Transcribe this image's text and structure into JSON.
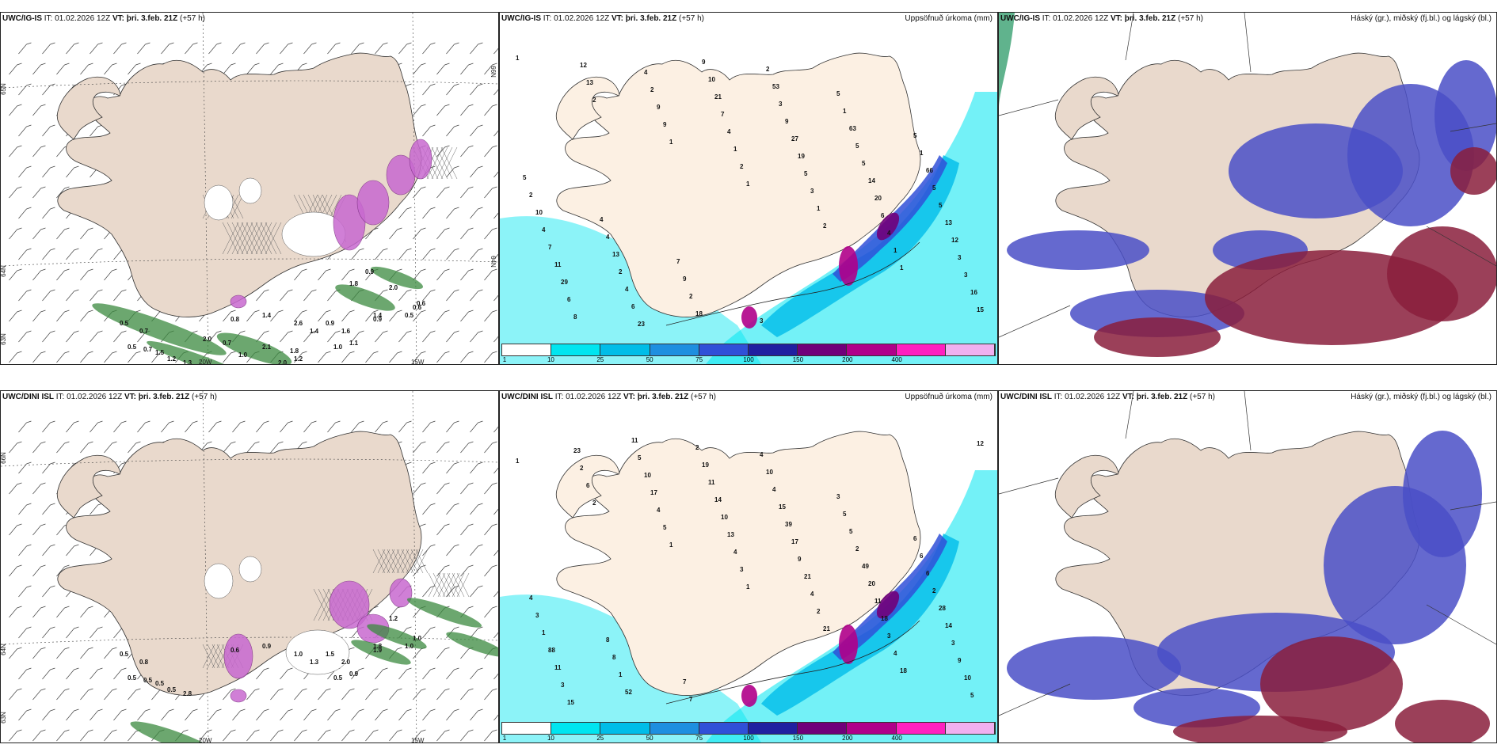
{
  "panels": [
    {
      "model": "UWC/IG-IS",
      "it_label": "IT:",
      "it": "01.02.2026 12Z",
      "vt_label": "VT:",
      "vt": "þri. 3.feb. 21Z",
      "lead": "(+57 h)",
      "title_right": "",
      "kind": "wind",
      "lon_labels": [
        "20W",
        "15W"
      ],
      "lat_labels": [
        "66N",
        "64N"
      ],
      "lat_left": [
        "65N",
        "64N",
        "63N"
      ]
    },
    {
      "model": "UWC/IG-IS",
      "it_label": "IT:",
      "it": "01.02.2026 12Z",
      "vt_label": "VT:",
      "vt": "þri. 3.feb. 21Z",
      "lead": "(+57 h)",
      "title_right": "Uppsöfnuð úrkoma (mm)",
      "kind": "precip"
    },
    {
      "model": "UWC/IG-IS",
      "it_label": "IT:",
      "it": "01.02.2026 12Z",
      "vt_label": "VT:",
      "vt": "þri. 3.feb. 21Z",
      "lead": "(+57 h)",
      "title_right": "Háský (gr.), miðský (fj.bl.) og lágský (bl.)",
      "kind": "cloud"
    },
    {
      "model": "UWC/DINI ISL",
      "it_label": "IT:",
      "it": "01.02.2026 12Z",
      "vt_label": "VT:",
      "vt": "þri. 3.feb. 21Z",
      "lead": "(+57 h)",
      "title_right": "",
      "kind": "wind",
      "lon_labels": [
        "20W",
        "15W"
      ],
      "lat_labels": [
        "66N",
        "64N"
      ],
      "lat_left": [
        "66N",
        "64N",
        "63N"
      ]
    },
    {
      "model": "UWC/DINI ISL",
      "it_label": "IT:",
      "it": "01.02.2026 12Z",
      "vt_label": "VT:",
      "vt": "þri. 3.feb. 21Z",
      "lead": "(+57 h)",
      "title_right": "Uppsöfnuð úrkoma (mm)",
      "kind": "precip"
    },
    {
      "model": "UWC/DINI ISL",
      "it_label": "IT:",
      "it": "01.02.2026 12Z",
      "vt_label": "VT:",
      "vt": "þri. 3.feb. 21Z",
      "lead": "(+57 h)",
      "title_right": "Háský (gr.), miðský (fj.bl.) og lágský (bl.)",
      "kind": "cloud"
    }
  ],
  "colorbar": {
    "ticks": [
      "1",
      "10",
      "25",
      "50",
      "75",
      "100",
      "150",
      "200",
      "400"
    ],
    "colors": [
      "#ffffff",
      "#00e5f0",
      "#00bde8",
      "#1e8fe0",
      "#3050d8",
      "#2020a0",
      "#70007a",
      "#b0008a",
      "#ff20c0",
      "#f0b0f0"
    ]
  },
  "precip_numbers_top": [
    "1",
    "2",
    "1",
    "1",
    "2",
    "1",
    "15",
    "13",
    "9",
    "2",
    "1",
    "1",
    "16",
    "12",
    "9",
    "1",
    "3",
    "4",
    "3",
    "8",
    "2",
    "4",
    "5",
    "6",
    "3",
    "6",
    "4",
    "7",
    "19",
    "20",
    "12",
    "29",
    "23",
    "21",
    "27",
    "14",
    "13",
    "11",
    "6",
    "10",
    "9",
    "5",
    "5",
    "7",
    "4",
    "9",
    "3",
    "5",
    "5",
    "4",
    "2",
    "18",
    "53",
    "63",
    "66",
    "10",
    "13",
    "2",
    "2",
    "1",
    "1",
    "2",
    "4",
    "9",
    "3",
    "5",
    "5",
    "5",
    "4",
    "7"
  ],
  "precip_numbers_bottom": [
    "1",
    "2",
    "1",
    "1",
    "21",
    "18",
    "12",
    "6",
    "5",
    "3",
    "2",
    "4",
    "5",
    "2",
    "4",
    "4",
    "4",
    "3",
    "10",
    "23",
    "17",
    "13",
    "21",
    "18",
    "9",
    "15",
    "10",
    "10",
    "9",
    "11",
    "3",
    "3",
    "5",
    "14",
    "17",
    "20",
    "14",
    "11",
    "11",
    "11",
    "39",
    "49",
    "28",
    "88",
    "52",
    "19",
    "15",
    "2",
    "2",
    "1",
    "1",
    "2",
    "4",
    "5",
    "6",
    "3",
    "8",
    "7",
    "10",
    "5",
    "6",
    "4",
    "8",
    "7",
    "4",
    "3",
    "6"
  ],
  "wind_numbers_top": [
    "0.5",
    "0.7",
    "0.5",
    "0.7",
    "1.5",
    "1.2",
    "1.3",
    "0.8",
    "1.4",
    "2.6",
    "1.4",
    "0.9",
    "1.6",
    "1.0",
    "1.1",
    "1.4",
    "0.9",
    "0.5",
    "0.6",
    "2.0",
    "0.7",
    "1.0",
    "2.1",
    "2.0",
    "1.8",
    "1.2",
    "2.0",
    "0.6",
    "0.9",
    "1.8"
  ],
  "wind_numbers_bottom": [
    "0.5",
    "0.8",
    "0.5",
    "0.5",
    "0.5",
    "0.5",
    "2.8",
    "0.6",
    "0.9",
    "1.0",
    "1.3",
    "1.5",
    "2.0",
    "0.5",
    "0.9",
    "1.8",
    "1.9",
    "1.0",
    "1.0",
    "1.2"
  ]
}
